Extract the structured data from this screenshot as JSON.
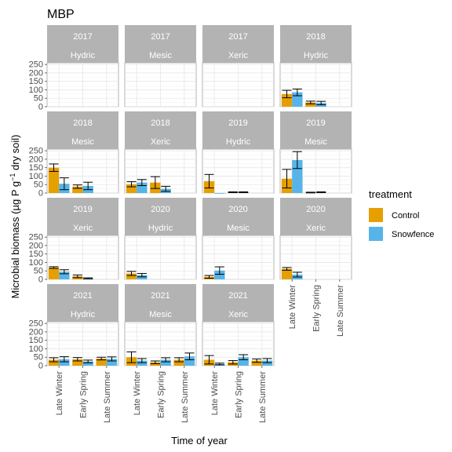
{
  "chart_data": {
    "type": "bar",
    "title": "MBP",
    "xlabel": "Time of year",
    "ylabel": "Microbial biomass (µg P g⁻¹ dry soil)",
    "ylim": [
      0,
      260
    ],
    "yticks": [
      0,
      50,
      100,
      150,
      200,
      250
    ],
    "categories": [
      "Late Winter",
      "Early Spring",
      "Late Summer"
    ],
    "legend": {
      "title": "treatment",
      "placement": "right",
      "entries": [
        {
          "name": "Control",
          "color": "#E69F00"
        },
        {
          "name": "Snowfence",
          "color": "#56B4E9"
        }
      ]
    },
    "grid": true,
    "facets": [
      {
        "year": "2017",
        "site": "Hydric",
        "control": [
          null,
          null,
          null
        ],
        "control_err": [
          null,
          null,
          null
        ],
        "snowfence": [
          null,
          null,
          null
        ],
        "snowfence_err": [
          null,
          null,
          null
        ]
      },
      {
        "year": "2017",
        "site": "Mesic",
        "control": [
          null,
          null,
          null
        ],
        "control_err": [
          null,
          null,
          null
        ],
        "snowfence": [
          null,
          null,
          null
        ],
        "snowfence_err": [
          null,
          null,
          null
        ]
      },
      {
        "year": "2017",
        "site": "Xeric",
        "control": [
          null,
          null,
          null
        ],
        "control_err": [
          null,
          null,
          null
        ],
        "snowfence": [
          null,
          null,
          null
        ],
        "snowfence_err": [
          null,
          null,
          null
        ]
      },
      {
        "year": "2018",
        "site": "Hydric",
        "control": [
          75,
          25,
          null
        ],
        "control_err": [
          22,
          8,
          null
        ],
        "snowfence": [
          85,
          22,
          null
        ],
        "snowfence_err": [
          20,
          10,
          null
        ]
      },
      {
        "year": "2018",
        "site": "Mesic",
        "control": [
          150,
          38,
          null
        ],
        "control_err": [
          22,
          10,
          null
        ],
        "snowfence": [
          55,
          42,
          null
        ],
        "snowfence_err": [
          35,
          22,
          null
        ]
      },
      {
        "year": "2018",
        "site": "Xeric",
        "control": [
          52,
          62,
          null
        ],
        "control_err": [
          15,
          35,
          null
        ],
        "snowfence": [
          62,
          25,
          null
        ],
        "snowfence_err": [
          18,
          15,
          null
        ]
      },
      {
        "year": "2019",
        "site": "Hydric",
        "control": [
          70,
          5,
          null
        ],
        "control_err": [
          40,
          2,
          null
        ],
        "snowfence": [
          0,
          5,
          null
        ],
        "snowfence_err": [
          0,
          2,
          null
        ]
      },
      {
        "year": "2019",
        "site": "Mesic",
        "control": [
          85,
          3,
          null
        ],
        "control_err": [
          55,
          2,
          null
        ],
        "snowfence": [
          195,
          5,
          null
        ],
        "snowfence_err": [
          50,
          2,
          null
        ]
      },
      {
        "year": "2019",
        "site": "Xeric",
        "control": [
          70,
          18,
          null
        ],
        "control_err": [
          5,
          8,
          null
        ],
        "snowfence": [
          45,
          6,
          null
        ],
        "snowfence_err": [
          12,
          3,
          null
        ]
      },
      {
        "year": "2020",
        "site": "Hydric",
        "control": [
          35,
          null,
          null
        ],
        "control_err": [
          12,
          null,
          null
        ],
        "snowfence": [
          25,
          null,
          null
        ],
        "snowfence_err": [
          10,
          null,
          null
        ]
      },
      {
        "year": "2020",
        "site": "Mesic",
        "control": [
          15,
          null,
          null
        ],
        "control_err": [
          8,
          null,
          null
        ],
        "snowfence": [
          52,
          null,
          null
        ],
        "snowfence_err": [
          22,
          null,
          null
        ]
      },
      {
        "year": "2020",
        "site": "Xeric",
        "control": [
          62,
          null,
          null
        ],
        "control_err": [
          8,
          null,
          null
        ],
        "snowfence": [
          28,
          null,
          null
        ],
        "snowfence_err": [
          14,
          null,
          null
        ]
      },
      {
        "year": "2021",
        "site": "Hydric",
        "control": [
          35,
          38,
          42
        ],
        "control_err": [
          12,
          10,
          8
        ],
        "snowfence": [
          38,
          25,
          40
        ],
        "snowfence_err": [
          15,
          8,
          12
        ]
      },
      {
        "year": "2021",
        "site": "Mesic",
        "control": [
          50,
          20,
          35
        ],
        "control_err": [
          32,
          8,
          12
        ],
        "snowfence": [
          30,
          35,
          55
        ],
        "snowfence_err": [
          12,
          12,
          20
        ]
      },
      {
        "year": "2021",
        "site": "Xeric",
        "control": [
          35,
          20,
          30
        ],
        "control_err": [
          25,
          10,
          10
        ],
        "snowfence": [
          10,
          50,
          30
        ],
        "snowfence_err": [
          5,
          15,
          12
        ]
      }
    ]
  }
}
